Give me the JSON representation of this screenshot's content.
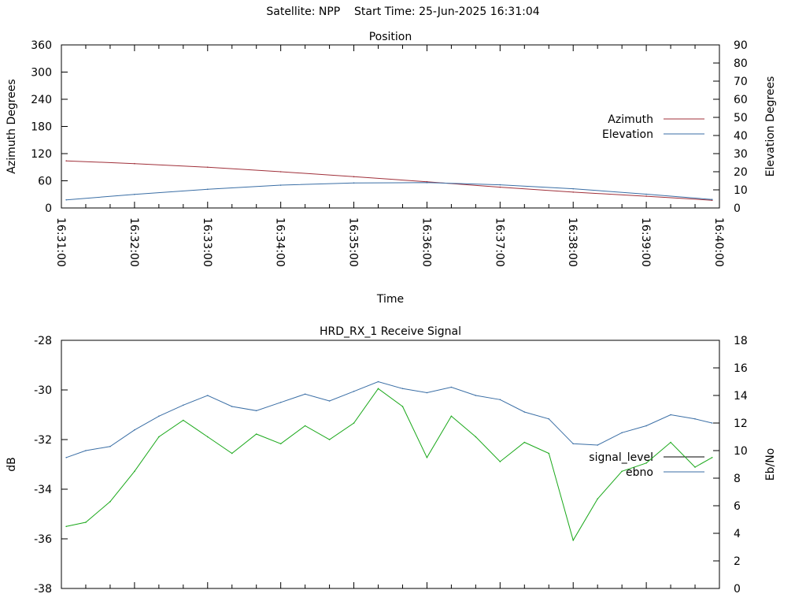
{
  "title": "Satellite: NPP    Start Time: 25-Jun-2025 16:31:04",
  "chart_data": [
    {
      "type": "line",
      "title": "Position",
      "xlabel": "Time",
      "ylabel": "Azimuth Degrees",
      "y2label": "Elevation Degrees",
      "x_ticks": [
        "16:31:00",
        "16:32:00",
        "16:33:00",
        "16:34:00",
        "16:35:00",
        "16:36:00",
        "16:37:00",
        "16:38:00",
        "16:39:00",
        "16:40:00"
      ],
      "ylim": [
        0,
        360
      ],
      "y_ticks": [
        0,
        60,
        120,
        180,
        240,
        300,
        360
      ],
      "y2lim": [
        0,
        90
      ],
      "y2_ticks": [
        0,
        10,
        20,
        30,
        40,
        50,
        60,
        70,
        80,
        90
      ],
      "grid": false,
      "legend": "right",
      "series": [
        {
          "name": "Azimuth",
          "axis": "y1",
          "color": "#a0303a",
          "x": [
            "16:31:04",
            "16:32:00",
            "16:33:00",
            "16:34:00",
            "16:35:00",
            "16:36:00",
            "16:37:00",
            "16:38:00",
            "16:39:00",
            "16:39:54"
          ],
          "values": [
            104,
            98,
            90,
            80,
            69,
            58,
            46,
            35,
            26,
            17
          ]
        },
        {
          "name": "Elevation",
          "axis": "y2",
          "color": "#3a6ea5",
          "x": [
            "16:31:04",
            "16:32:00",
            "16:33:00",
            "16:34:00",
            "16:35:00",
            "16:36:00",
            "16:37:00",
            "16:38:00",
            "16:39:00",
            "16:39:54"
          ],
          "values": [
            4.5,
            7.5,
            10.3,
            12.6,
            13.8,
            14.0,
            12.8,
            10.6,
            7.6,
            4.7
          ]
        }
      ]
    },
    {
      "type": "line",
      "title": "HRD_RX_1 Receive Signal",
      "ylabel": "dB",
      "y2label": "Eb/No",
      "ylim": [
        -38,
        -28
      ],
      "y_ticks": [
        -38,
        -36,
        -34,
        -32,
        -30,
        -28
      ],
      "y2lim": [
        0,
        18
      ],
      "y2_ticks": [
        0,
        2,
        4,
        6,
        8,
        10,
        12,
        14,
        16,
        18
      ],
      "grid": false,
      "legend": "right",
      "series": [
        {
          "name": "signal_level",
          "axis": "y1",
          "color": "#000000",
          "x": [],
          "values": []
        },
        {
          "name": "ebno",
          "axis": "y2",
          "color": "#3a6ea5",
          "x": [
            "16:31:04",
            "16:31:20",
            "16:31:40",
            "16:32:00",
            "16:32:20",
            "16:32:40",
            "16:33:00",
            "16:33:20",
            "16:33:40",
            "16:34:00",
            "16:34:20",
            "16:34:40",
            "16:35:00",
            "16:35:20",
            "16:35:40",
            "16:36:00",
            "16:36:20",
            "16:36:40",
            "16:37:00",
            "16:37:20",
            "16:37:40",
            "16:38:00",
            "16:38:20",
            "16:38:40",
            "16:39:00",
            "16:39:20",
            "16:39:40",
            "16:39:54"
          ],
          "values": [
            9.5,
            10.0,
            10.3,
            11.5,
            12.5,
            13.3,
            14.0,
            13.2,
            12.9,
            13.5,
            14.1,
            13.6,
            14.3,
            15.0,
            14.5,
            14.2,
            14.6,
            14.0,
            13.7,
            12.8,
            12.3,
            10.5,
            10.4,
            11.3,
            11.8,
            12.6,
            12.3,
            12.0
          ]
        },
        {
          "name": "",
          "axis": "y2",
          "color": "#1aa81a",
          "x": [
            "16:31:04",
            "16:31:20",
            "16:31:40",
            "16:32:00",
            "16:32:20",
            "16:32:40",
            "16:33:00",
            "16:33:20",
            "16:33:40",
            "16:34:00",
            "16:34:20",
            "16:34:40",
            "16:35:00",
            "16:35:20",
            "16:35:40",
            "16:36:00",
            "16:36:20",
            "16:36:40",
            "16:37:00",
            "16:37:20",
            "16:37:40",
            "16:38:00",
            "16:38:20",
            "16:38:40",
            "16:39:00",
            "16:39:20",
            "16:39:40",
            "16:39:54"
          ],
          "values": [
            4.5,
            4.8,
            6.3,
            8.5,
            11.0,
            12.2,
            11.0,
            9.8,
            11.2,
            10.5,
            11.8,
            10.8,
            12.0,
            14.5,
            13.2,
            9.5,
            12.5,
            11.0,
            9.2,
            10.6,
            9.8,
            3.5,
            6.5,
            8.5,
            9.1,
            10.6,
            8.8,
            9.5
          ]
        }
      ]
    }
  ]
}
